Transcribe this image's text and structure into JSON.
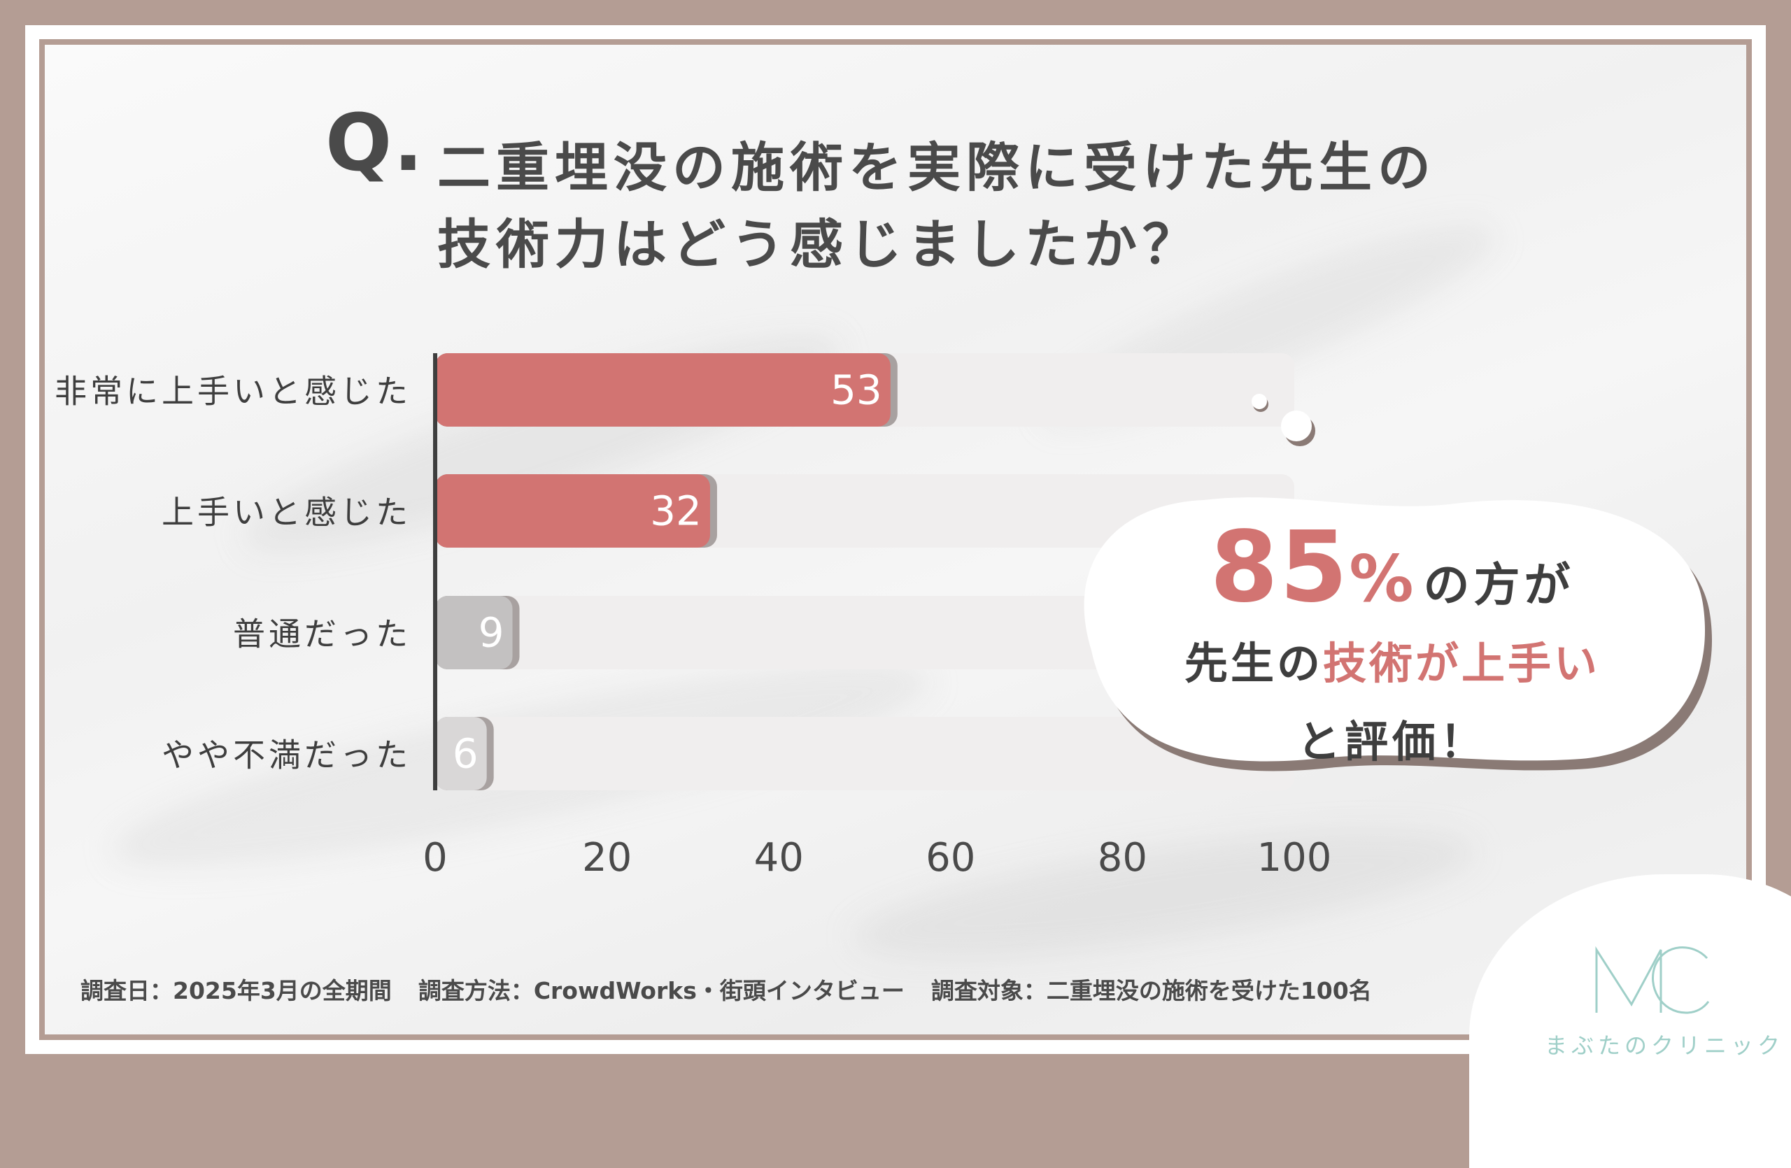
{
  "title": {
    "q_mark": "Q.",
    "line1": "二重埋没の施術を実際に受けた先生の",
    "line2": "技術力はどう感じましたか？"
  },
  "chart_data": {
    "type": "bar",
    "orientation": "horizontal",
    "categories": [
      "非常に上手いと感じた",
      "上手いと感じた",
      "普通だった",
      "やや不満だった"
    ],
    "values": [
      53,
      32,
      9,
      6
    ],
    "xlim": [
      0,
      100
    ],
    "x_ticks": [
      "0",
      "20",
      "40",
      "60",
      "80",
      "100"
    ],
    "bar_colors": [
      "#d27472",
      "#d27472",
      "#c3c1c1",
      "#d9d7d7"
    ],
    "track_color": "#f0eeee"
  },
  "callout": {
    "percent_value": "85",
    "percent_sign": "%",
    "line1_tail": "の方が",
    "line2_part1": "先生の",
    "line2_accent1": "技術",
    "line2_part2": "が",
    "line2_accent2": "上手い",
    "line3": "と評価！"
  },
  "footnote": {
    "date": "調査日：2025年3月の全期間",
    "method": "調査方法：CrowdWorks・街頭インタビュー",
    "target": "調査対象：二重埋没の施術を受けた100名"
  },
  "logo": {
    "mark": "MC",
    "name": "まぶたのクリニック"
  },
  "colors": {
    "frame": "#b49d94",
    "accent": "#d27472",
    "text": "#4a4a4a",
    "logo": "#9fcfc8"
  }
}
